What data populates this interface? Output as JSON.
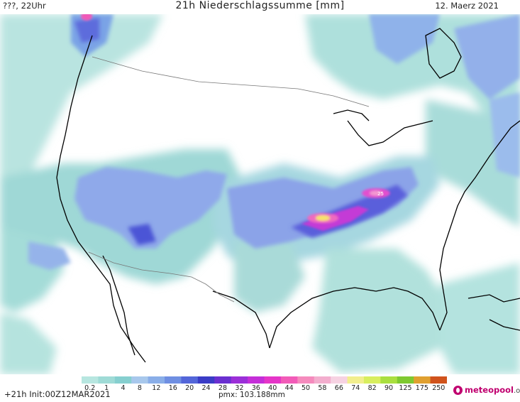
{
  "header": {
    "left_label": "???, 22Uhr",
    "title": "21h Niederschlagssumme [mm]",
    "date": "12. Maerz 2021"
  },
  "legend": {
    "ticks": [
      "0.2",
      "1",
      "4",
      "8",
      "12",
      "16",
      "20",
      "24",
      "28",
      "32",
      "36",
      "40",
      "44",
      "50",
      "58",
      "66",
      "74",
      "82",
      "90",
      "125",
      "175",
      "250"
    ],
    "colors": [
      "#b7e6e0",
      "#9fdbd6",
      "#86cfcf",
      "#a8c8ec",
      "#8aaee8",
      "#6f8fe2",
      "#5366d9",
      "#3a3cc6",
      "#6a2fd0",
      "#9b2fd8",
      "#c42ed8",
      "#e535c8",
      "#f25bb8",
      "#f58bbd",
      "#f3aece",
      "#f6d2e2",
      "#f2ee8d",
      "#d8ee5e",
      "#a9df3f",
      "#7ec930",
      "#e0a030",
      "#d0531c"
    ],
    "marker_label": "25"
  },
  "footer": {
    "run": "+21h Init:00Z12MAR2021",
    "pmx": "pmx: 103.188mm",
    "brand_main": "meteopool",
    "brand_tld": ".org"
  },
  "icons": {
    "logo": "meteopool-logo-icon"
  }
}
